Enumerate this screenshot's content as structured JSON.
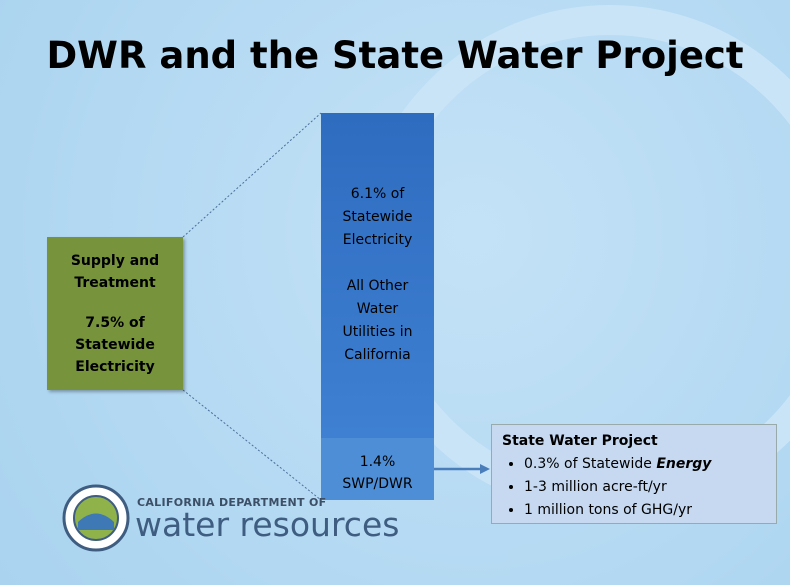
{
  "header": {
    "title": "DWR and the State Water Project"
  },
  "supply_box": {
    "heading": "Supply and Treatment",
    "share": "7.5% of Statewide Electricity"
  },
  "utilities_bar": {
    "share": "6.1% of Statewide Electricity",
    "label": "All Other Water Utilities in California"
  },
  "swp_bar": {
    "share": "1.4%",
    "label": "SWP/DWR"
  },
  "swp_box": {
    "heading": "State Water Project",
    "bullets": [
      {
        "text": "0.3% of Statewide",
        "emphasis": "Energy"
      },
      {
        "text": "1-3 million acre-ft/yr"
      },
      {
        "text": "1 million tons of GHG/yr"
      }
    ]
  },
  "logo": {
    "line1": "CALIFORNIA DEPARTMENT OF",
    "line2": "water resources"
  }
}
